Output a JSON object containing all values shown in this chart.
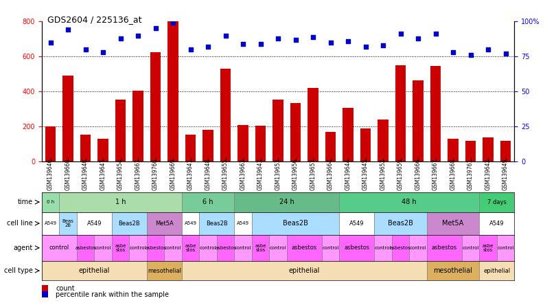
{
  "title": "GDS2604 / 225136_at",
  "samples": [
    "GSM139646",
    "GSM139660",
    "GSM139640",
    "GSM139647",
    "GSM139654",
    "GSM139661",
    "GSM139760",
    "GSM139669",
    "GSM139641",
    "GSM139648",
    "GSM139655",
    "GSM139663",
    "GSM139643",
    "GSM139653",
    "GSM139656",
    "GSM139657",
    "GSM139664",
    "GSM139644",
    "GSM139645",
    "GSM139652",
    "GSM139659",
    "GSM139666",
    "GSM139667",
    "GSM139668",
    "GSM139761",
    "GSM139642",
    "GSM139649"
  ],
  "counts": [
    200,
    490,
    155,
    130,
    355,
    405,
    625,
    800,
    155,
    180,
    530,
    210,
    205,
    355,
    335,
    420,
    170,
    305,
    190,
    240,
    550,
    465,
    545,
    130,
    120,
    140,
    120
  ],
  "percentile": [
    85,
    94,
    80,
    78,
    88,
    90,
    95,
    99,
    80,
    82,
    90,
    84,
    84,
    88,
    87,
    89,
    85,
    86,
    82,
    83,
    91,
    88,
    91,
    78,
    76,
    80,
    77
  ],
  "bar_color": "#cc0000",
  "dot_color": "#0000cc",
  "ylim_left": [
    0,
    800
  ],
  "ylim_right": [
    0,
    100
  ],
  "yticks_left": [
    0,
    200,
    400,
    600,
    800
  ],
  "yticks_right": [
    0,
    25,
    50,
    75,
    100
  ],
  "time_row": {
    "label": "time",
    "spans": [
      {
        "text": "0 h",
        "start": 0,
        "end": 1,
        "color": "#99ddaa"
      },
      {
        "text": "1 h",
        "start": 1,
        "end": 8,
        "color": "#aaddaa"
      },
      {
        "text": "6 h",
        "start": 8,
        "end": 11,
        "color": "#77cc99"
      },
      {
        "text": "24 h",
        "start": 11,
        "end": 17,
        "color": "#66bb88"
      },
      {
        "text": "48 h",
        "start": 17,
        "end": 25,
        "color": "#55cc88"
      },
      {
        "text": "7 days",
        "start": 25,
        "end": 27,
        "color": "#44cc77"
      }
    ]
  },
  "cellline_row": {
    "label": "cell line",
    "spans": [
      {
        "text": "A549",
        "start": 0,
        "end": 1,
        "color": "#ffffff"
      },
      {
        "text": "Beas\n2B",
        "start": 1,
        "end": 2,
        "color": "#aaddff"
      },
      {
        "text": "A549",
        "start": 2,
        "end": 4,
        "color": "#ffffff"
      },
      {
        "text": "Beas2B",
        "start": 4,
        "end": 6,
        "color": "#aaddff"
      },
      {
        "text": "Met5A",
        "start": 6,
        "end": 8,
        "color": "#cc88cc"
      },
      {
        "text": "A549",
        "start": 8,
        "end": 9,
        "color": "#ffffff"
      },
      {
        "text": "Beas2B",
        "start": 9,
        "end": 11,
        "color": "#aaddff"
      },
      {
        "text": "A549",
        "start": 11,
        "end": 12,
        "color": "#ffffff"
      },
      {
        "text": "Beas2B",
        "start": 12,
        "end": 17,
        "color": "#aaddff"
      },
      {
        "text": "A549",
        "start": 17,
        "end": 19,
        "color": "#ffffff"
      },
      {
        "text": "Beas2B",
        "start": 19,
        "end": 22,
        "color": "#aaddff"
      },
      {
        "text": "Met5A",
        "start": 22,
        "end": 25,
        "color": "#cc88cc"
      },
      {
        "text": "A549",
        "start": 25,
        "end": 27,
        "color": "#ffffff"
      }
    ]
  },
  "agent_row": {
    "label": "agent",
    "spans": [
      {
        "text": "control",
        "start": 0,
        "end": 2,
        "color": "#ff99ff"
      },
      {
        "text": "asbestos",
        "start": 2,
        "end": 3,
        "color": "#ff66ff"
      },
      {
        "text": "control",
        "start": 3,
        "end": 4,
        "color": "#ff99ff"
      },
      {
        "text": "asbe\nstos",
        "start": 4,
        "end": 5,
        "color": "#ff66ff"
      },
      {
        "text": "control",
        "start": 5,
        "end": 6,
        "color": "#ff99ff"
      },
      {
        "text": "asbestos",
        "start": 6,
        "end": 7,
        "color": "#ff66ff"
      },
      {
        "text": "control",
        "start": 7,
        "end": 8,
        "color": "#ff99ff"
      },
      {
        "text": "asbe\nstos",
        "start": 8,
        "end": 9,
        "color": "#ff66ff"
      },
      {
        "text": "control",
        "start": 9,
        "end": 10,
        "color": "#ff99ff"
      },
      {
        "text": "asbestos",
        "start": 10,
        "end": 11,
        "color": "#ff66ff"
      },
      {
        "text": "control",
        "start": 11,
        "end": 12,
        "color": "#ff99ff"
      },
      {
        "text": "asbe\nstos",
        "start": 12,
        "end": 13,
        "color": "#ff66ff"
      },
      {
        "text": "control",
        "start": 13,
        "end": 14,
        "color": "#ff99ff"
      },
      {
        "text": "asbestos",
        "start": 14,
        "end": 16,
        "color": "#ff66ff"
      },
      {
        "text": "control",
        "start": 16,
        "end": 17,
        "color": "#ff99ff"
      },
      {
        "text": "asbestos",
        "start": 17,
        "end": 19,
        "color": "#ff66ff"
      },
      {
        "text": "control",
        "start": 19,
        "end": 20,
        "color": "#ff99ff"
      },
      {
        "text": "asbestos",
        "start": 20,
        "end": 21,
        "color": "#ff66ff"
      },
      {
        "text": "control",
        "start": 21,
        "end": 22,
        "color": "#ff99ff"
      },
      {
        "text": "asbestos",
        "start": 22,
        "end": 24,
        "color": "#ff66ff"
      },
      {
        "text": "control",
        "start": 24,
        "end": 25,
        "color": "#ff99ff"
      },
      {
        "text": "asbe\nstos",
        "start": 25,
        "end": 26,
        "color": "#ff66ff"
      },
      {
        "text": "control",
        "start": 26,
        "end": 27,
        "color": "#ff99ff"
      }
    ]
  },
  "celltype_row": {
    "label": "cell type",
    "spans": [
      {
        "text": "epithelial",
        "start": 0,
        "end": 6,
        "color": "#f5deb3"
      },
      {
        "text": "mesothelial",
        "start": 6,
        "end": 8,
        "color": "#ddb060"
      },
      {
        "text": "epithelial",
        "start": 8,
        "end": 22,
        "color": "#f5deb3"
      },
      {
        "text": "mesothelial",
        "start": 22,
        "end": 25,
        "color": "#ddb060"
      },
      {
        "text": "epithelial",
        "start": 25,
        "end": 27,
        "color": "#f5deb3"
      }
    ]
  },
  "background_color": "#ffffff"
}
